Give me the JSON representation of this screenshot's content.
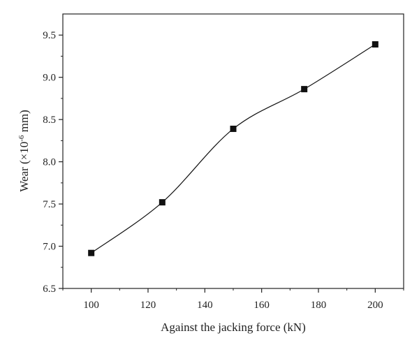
{
  "chart_data": {
    "type": "line",
    "xlabel": "Against the jacking force (kN)",
    "ylabel_main": "Wear (×10",
    "ylabel_exp": "-6",
    "ylabel_unit": " mm)",
    "xlim": [
      90,
      210
    ],
    "ylim": [
      6.5,
      9.75
    ],
    "x_ticks": [
      100,
      120,
      140,
      160,
      180,
      200
    ],
    "y_ticks": [
      "6.5",
      "7.0",
      "7.5",
      "8.0",
      "8.5",
      "9.0",
      "9.5"
    ],
    "series": [
      {
        "x": [
          100,
          125,
          150,
          175,
          200
        ],
        "values": [
          6.92,
          7.52,
          8.39,
          8.86,
          9.39
        ],
        "marker": "square",
        "color": "#111111",
        "smooth": true
      }
    ]
  }
}
